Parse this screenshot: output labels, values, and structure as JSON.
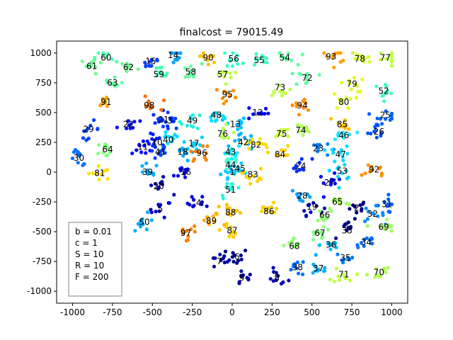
{
  "chart_data": {
    "type": "scatter",
    "title": "finalcost = 79015.49",
    "xlabel": "",
    "ylabel": "",
    "xlim": [
      -1100,
      1100
    ],
    "ylim": [
      -1100,
      1100
    ],
    "xticks": [
      -1000,
      -750,
      -500,
      -250,
      0,
      250,
      500,
      750,
      1000
    ],
    "yticks": [
      -1000,
      -750,
      -500,
      -250,
      0,
      250,
      500,
      750,
      1000
    ],
    "grid": false,
    "legend_placement": "lower-left",
    "params": [
      "b = 0.01",
      "c = 1",
      "S = 10",
      "R = 10",
      "F = 200"
    ],
    "colormap": "jet",
    "clusters": [
      {
        "label": "1",
        "x": 0,
        "y": 0,
        "color": "#00bfff"
      },
      {
        "label": "2",
        "x": 780,
        "y": -300,
        "color": "#000080"
      },
      {
        "label": "3",
        "x": -390,
        "y": 430,
        "color": "#0040ff"
      },
      {
        "label": "4",
        "x": -210,
        "y": -260,
        "color": "#0000cd"
      },
      {
        "label": "5",
        "x": -450,
        "y": -310,
        "color": "#0000cd"
      },
      {
        "label": "6",
        "x": 30,
        "y": -710,
        "color": "#000090"
      },
      {
        "label": "7",
        "x": -80,
        "y": -750,
        "color": "#0000a0"
      },
      {
        "label": "8",
        "x": 280,
        "y": -890,
        "color": "#0000b0"
      },
      {
        "label": "9",
        "x": 60,
        "y": -890,
        "color": "#0000a0"
      },
      {
        "label": "10",
        "x": -470,
        "y": 250,
        "color": "#0020ff"
      },
      {
        "label": "11",
        "x": -560,
        "y": 210,
        "color": "#0000ff"
      },
      {
        "label": "12",
        "x": 160,
        "y": 500,
        "color": "#0000ff"
      },
      {
        "label": "13",
        "x": 20,
        "y": 400,
        "color": "#00c0ff"
      },
      {
        "label": "14",
        "x": -370,
        "y": 980,
        "color": "#00a0ff"
      },
      {
        "label": "15",
        "x": -510,
        "y": 930,
        "color": "#0040ff"
      },
      {
        "label": "16",
        "x": -290,
        "y": 0,
        "color": "#0000e0"
      },
      {
        "label": "17",
        "x": -240,
        "y": 240,
        "color": "#00d0ff"
      },
      {
        "label": "18",
        "x": -310,
        "y": 170,
        "color": "#00b0ff"
      },
      {
        "label": "19",
        "x": 500,
        "y": -290,
        "color": "#0000c0"
      },
      {
        "label": "20",
        "x": -460,
        "y": -120,
        "color": "#0000a0"
      },
      {
        "label": "21",
        "x": -430,
        "y": 440,
        "color": "#0030ff"
      },
      {
        "label": "22",
        "x": -650,
        "y": 400,
        "color": "#0010ff"
      },
      {
        "label": "23",
        "x": 540,
        "y": 200,
        "color": "#0080ff"
      },
      {
        "label": "24",
        "x": 430,
        "y": 50,
        "color": "#0030ff"
      },
      {
        "label": "25",
        "x": 960,
        "y": 480,
        "color": "#0060ff"
      },
      {
        "label": "26",
        "x": 920,
        "y": 340,
        "color": "#0050ff"
      },
      {
        "label": "27",
        "x": 610,
        "y": -90,
        "color": "#0000ff"
      },
      {
        "label": "28",
        "x": 440,
        "y": -200,
        "color": "#00a0ff"
      },
      {
        "label": "29",
        "x": -900,
        "y": 360,
        "color": "#0040ff"
      },
      {
        "label": "30",
        "x": -960,
        "y": 120,
        "color": "#0070ff"
      },
      {
        "label": "31",
        "x": 970,
        "y": -270,
        "color": "#0060ff"
      },
      {
        "label": "32",
        "x": 880,
        "y": -350,
        "color": "#0090ff"
      },
      {
        "label": "33",
        "x": 720,
        "y": -490,
        "color": "#000090"
      },
      {
        "label": "34",
        "x": 840,
        "y": -590,
        "color": "#0070ff"
      },
      {
        "label": "35",
        "x": 710,
        "y": -720,
        "color": "#0080ff"
      },
      {
        "label": "36",
        "x": 620,
        "y": -610,
        "color": "#00c0ff"
      },
      {
        "label": "37",
        "x": 540,
        "y": -810,
        "color": "#00b0ff"
      },
      {
        "label": "38",
        "x": 410,
        "y": -800,
        "color": "#0070ff"
      },
      {
        "label": "39",
        "x": -530,
        "y": 0,
        "color": "#00b0ff"
      },
      {
        "label": "40",
        "x": -400,
        "y": 270,
        "color": "#00e0ff"
      },
      {
        "label": "41",
        "x": -450,
        "y": 170,
        "color": "#0040ff"
      },
      {
        "label": "42",
        "x": 70,
        "y": 250,
        "color": "#00b0ff"
      },
      {
        "label": "43",
        "x": -10,
        "y": 170,
        "color": "#00e8ff"
      },
      {
        "label": "44",
        "x": -10,
        "y": 60,
        "color": "#40ffd0"
      },
      {
        "label": "45",
        "x": 50,
        "y": 30,
        "color": "#00d0ff"
      },
      {
        "label": "46",
        "x": 700,
        "y": 310,
        "color": "#20e8ff"
      },
      {
        "label": "47",
        "x": 680,
        "y": 150,
        "color": "#00e0ff"
      },
      {
        "label": "48",
        "x": -100,
        "y": 480,
        "color": "#00e0ff"
      },
      {
        "label": "49",
        "x": -250,
        "y": 430,
        "color": "#20f0e0"
      },
      {
        "label": "50",
        "x": -550,
        "y": -420,
        "color": "#00b0ff"
      },
      {
        "label": "51",
        "x": -10,
        "y": -150,
        "color": "#20f8e0"
      },
      {
        "label": "52",
        "x": 950,
        "y": 680,
        "color": "#40ffc0"
      },
      {
        "label": "53",
        "x": 690,
        "y": 10,
        "color": "#00d8ff"
      },
      {
        "label": "54",
        "x": 330,
        "y": 960,
        "color": "#60ffa0"
      },
      {
        "label": "55",
        "x": 170,
        "y": 940,
        "color": "#40ffc0"
      },
      {
        "label": "56",
        "x": 10,
        "y": 950,
        "color": "#30ffd0"
      },
      {
        "label": "57",
        "x": -60,
        "y": 820,
        "color": "#c0ff40"
      },
      {
        "label": "58",
        "x": -260,
        "y": 840,
        "color": "#60ffa0"
      },
      {
        "label": "59",
        "x": -460,
        "y": 820,
        "color": "#40ffb0"
      },
      {
        "label": "60",
        "x": -790,
        "y": 960,
        "color": "#50ffb0"
      },
      {
        "label": "61",
        "x": -880,
        "y": 890,
        "color": "#70ff90"
      },
      {
        "label": "62",
        "x": -650,
        "y": 880,
        "color": "#70ff90"
      },
      {
        "label": "63",
        "x": -750,
        "y": 750,
        "color": "#60ffa0"
      },
      {
        "label": "64",
        "x": -780,
        "y": 190,
        "color": "#80ff80"
      },
      {
        "label": "65",
        "x": 660,
        "y": -250,
        "color": "#a0ff60"
      },
      {
        "label": "66",
        "x": 580,
        "y": -360,
        "color": "#90ff70"
      },
      {
        "label": "67",
        "x": 550,
        "y": -510,
        "color": "#80ff80"
      },
      {
        "label": "68",
        "x": 390,
        "y": -620,
        "color": "#90ff70"
      },
      {
        "label": "69",
        "x": 950,
        "y": -460,
        "color": "#a0ff60"
      },
      {
        "label": "70",
        "x": 920,
        "y": -840,
        "color": "#b0ff50"
      },
      {
        "label": "71",
        "x": 700,
        "y": -860,
        "color": "#c0ff40"
      },
      {
        "label": "72",
        "x": 470,
        "y": 790,
        "color": "#60ffa0"
      },
      {
        "label": "73",
        "x": 300,
        "y": 710,
        "color": "#c0ff40"
      },
      {
        "label": "74",
        "x": 430,
        "y": 350,
        "color": "#b0ff50"
      },
      {
        "label": "75",
        "x": 310,
        "y": 320,
        "color": "#c8ff38"
      },
      {
        "label": "76",
        "x": -60,
        "y": 320,
        "color": "#b0ff50"
      },
      {
        "label": "77",
        "x": 960,
        "y": 960,
        "color": "#c0ff40"
      },
      {
        "label": "78",
        "x": 800,
        "y": 950,
        "color": "#d0ff30"
      },
      {
        "label": "79",
        "x": 750,
        "y": 740,
        "color": "#d8ff28"
      },
      {
        "label": "80",
        "x": 700,
        "y": 590,
        "color": "#e0ff20"
      },
      {
        "label": "81",
        "x": -830,
        "y": -10,
        "color": "#ffe000"
      },
      {
        "label": "82",
        "x": 150,
        "y": 230,
        "color": "#ffe000"
      },
      {
        "label": "83",
        "x": 130,
        "y": -20,
        "color": "#ffd000"
      },
      {
        "label": "84",
        "x": 300,
        "y": 150,
        "color": "#ffd000"
      },
      {
        "label": "85",
        "x": 690,
        "y": 400,
        "color": "#ffc000"
      },
      {
        "label": "86",
        "x": 230,
        "y": -330,
        "color": "#ffd000"
      },
      {
        "label": "87",
        "x": 0,
        "y": -490,
        "color": "#ffd000"
      },
      {
        "label": "88",
        "x": -10,
        "y": -340,
        "color": "#ffc000"
      },
      {
        "label": "89",
        "x": -130,
        "y": -410,
        "color": "#ffb000"
      },
      {
        "label": "90",
        "x": -150,
        "y": 960,
        "color": "#ffc000"
      },
      {
        "label": "91",
        "x": -790,
        "y": 590,
        "color": "#ffa000"
      },
      {
        "label": "92",
        "x": 890,
        "y": 20,
        "color": "#ff9000"
      },
      {
        "label": "93",
        "x": 620,
        "y": 970,
        "color": "#ffa000"
      },
      {
        "label": "94",
        "x": 440,
        "y": 560,
        "color": "#ff9000"
      },
      {
        "label": "95",
        "x": -30,
        "y": 650,
        "color": "#ff9000"
      },
      {
        "label": "96",
        "x": -190,
        "y": 160,
        "color": "#ff8000"
      },
      {
        "label": "97",
        "x": -290,
        "y": -510,
        "color": "#ff8000"
      },
      {
        "label": "98",
        "x": -520,
        "y": 560,
        "color": "#ff7000"
      }
    ]
  }
}
